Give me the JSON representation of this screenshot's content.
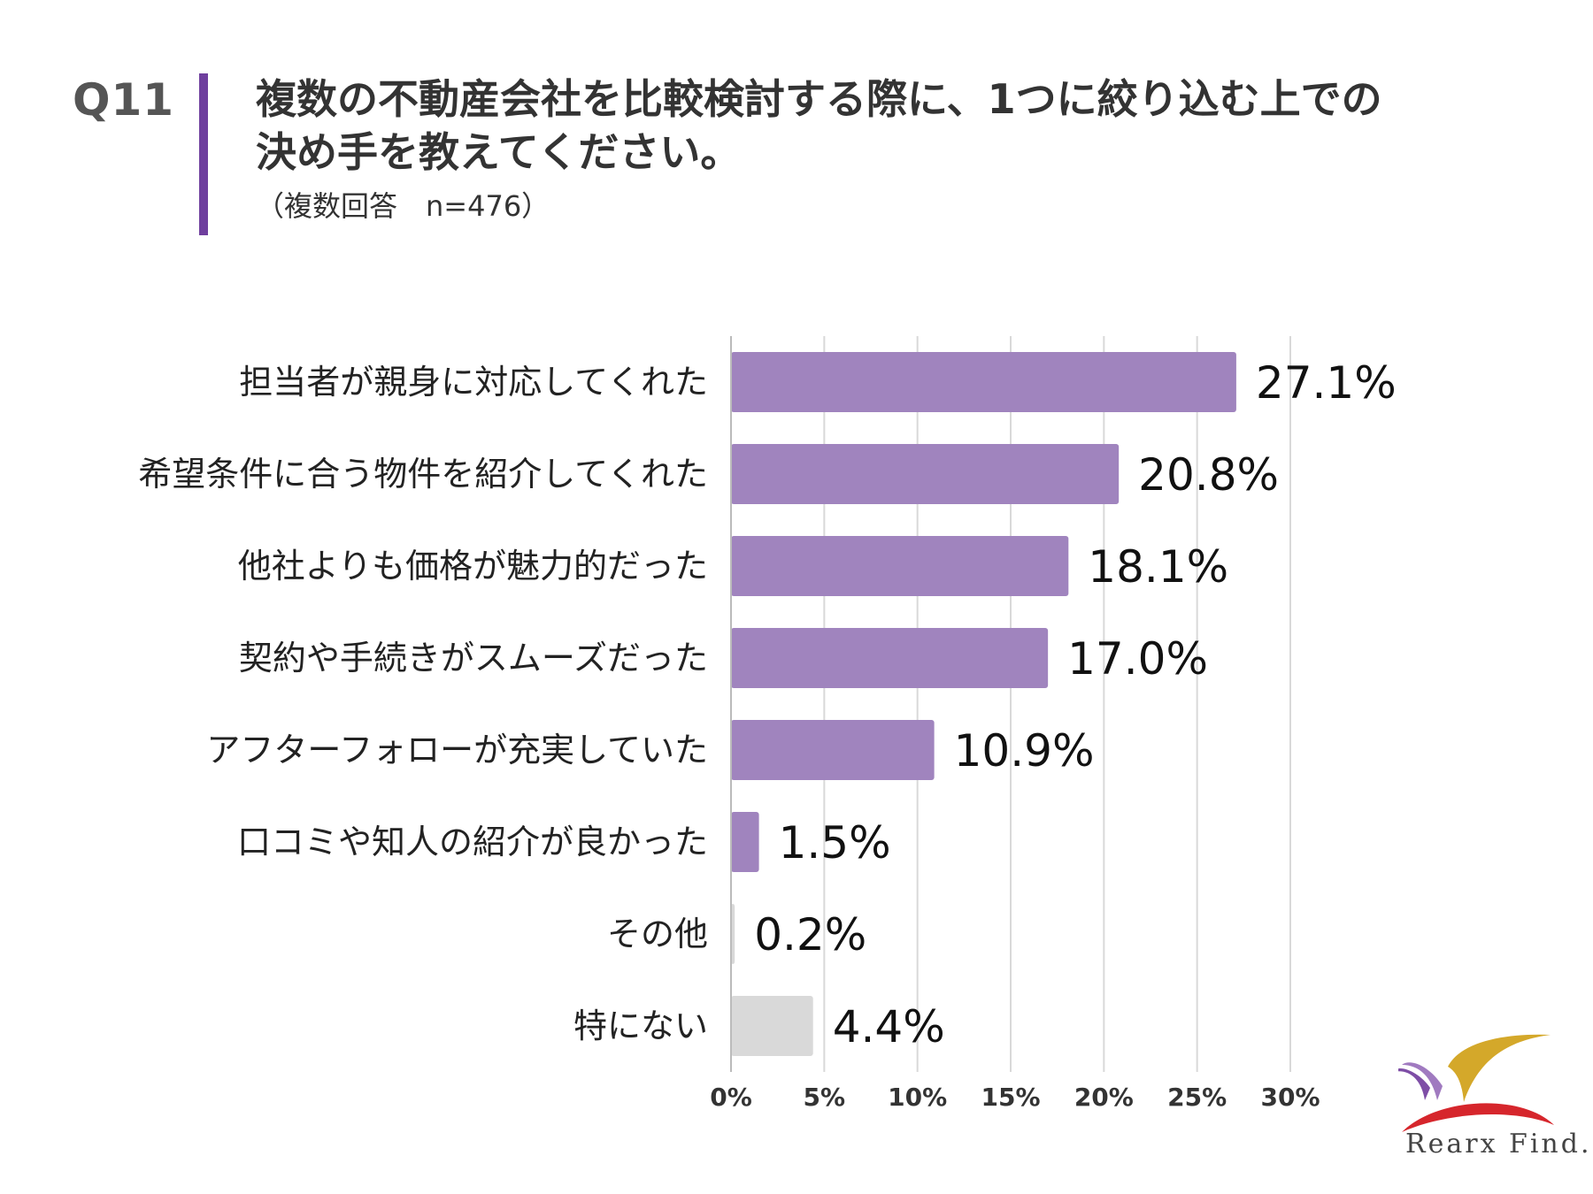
{
  "header": {
    "question_number": "Q11",
    "title_line1": "複数の不動産会社を比較検討する際に、1つに絞り込む上での",
    "title_line2": "決め手を教えてください。",
    "subtitle": "（複数回答　n=476）"
  },
  "colors": {
    "accent": "#6f3f9e",
    "bar_primary": "#a084be",
    "bar_secondary": "#d9d9d9",
    "grid": "#d9d9d9"
  },
  "chart_data": {
    "type": "bar",
    "orientation": "horizontal",
    "categories": [
      "担当者が親身に対応してくれた",
      "希望条件に合う物件を紹介してくれた",
      "他社よりも価格が魅力的だった",
      "契約や手続きがスムーズだった",
      "アフターフォローが充実していた",
      "口コミや知人の紹介が良かった",
      "その他",
      "特にない"
    ],
    "values": [
      27.1,
      20.8,
      18.1,
      17.0,
      10.9,
      1.5,
      0.2,
      4.4
    ],
    "value_labels": [
      "27.1%",
      "20.8%",
      "18.1%",
      "17.0%",
      "10.9%",
      "1.5%",
      "0.2%",
      "4.4%"
    ],
    "bar_color_keys": [
      "primary",
      "primary",
      "primary",
      "primary",
      "primary",
      "primary",
      "secondary",
      "secondary"
    ],
    "xlim": [
      0,
      30
    ],
    "xticks": [
      0,
      5,
      10,
      15,
      20,
      25,
      30
    ],
    "xtick_labels": [
      "0%",
      "5%",
      "10%",
      "15%",
      "20%",
      "25%",
      "30%"
    ],
    "grid": true,
    "legend": "none"
  },
  "logo": {
    "text": "Rearx Find."
  }
}
